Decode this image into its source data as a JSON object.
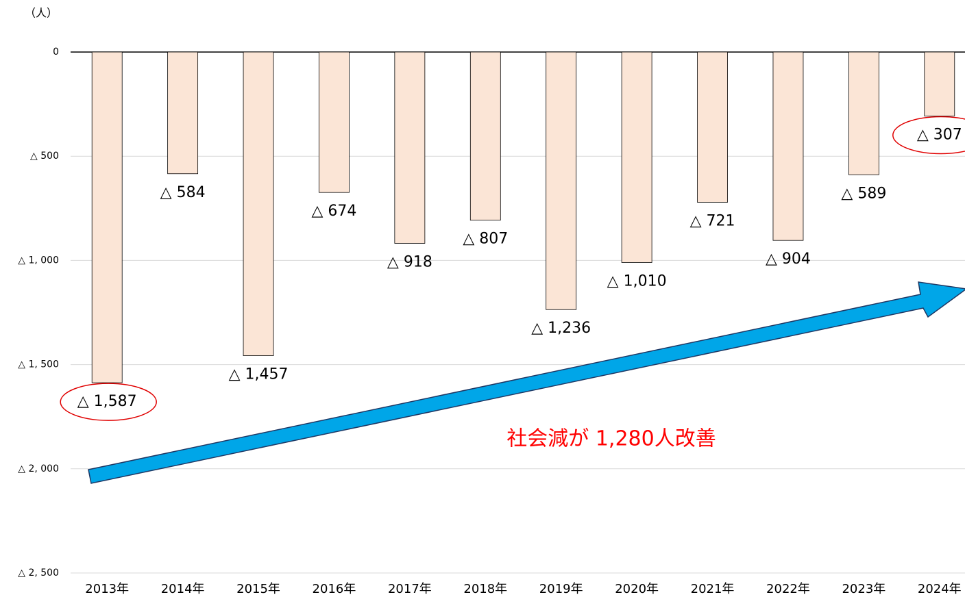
{
  "chart_data": {
    "type": "bar",
    "y_label": "（人）",
    "annotation": "社会減が 1,280人改善",
    "categories": [
      "2013年",
      "2014年",
      "2015年",
      "2016年",
      "2017年",
      "2018年",
      "2019年",
      "2020年",
      "2021年",
      "2022年",
      "2023年",
      "2024年"
    ],
    "values": [
      -1587,
      -584,
      -1457,
      -674,
      -918,
      -807,
      -1236,
      -1010,
      -721,
      -904,
      -589,
      -307
    ],
    "value_labels": [
      "△ 1,587",
      "△ 584",
      "△ 1,457",
      "△ 674",
      "△ 918",
      "△ 807",
      "△ 1,236",
      "△ 1,010",
      "△ 721",
      "△ 904",
      "△ 589",
      "△ 307"
    ],
    "color": "#fbe5d6",
    "ylim": [
      -2500,
      0
    ],
    "yticks": [
      0,
      {
        "value": -500,
        "label": "△ 500"
      },
      {
        "value": -1000,
        "label": "△ 1, 000"
      },
      {
        "value": -1500,
        "label": "△ 1, 500"
      },
      {
        "value": -2000,
        "label": "△ 2, 000"
      },
      {
        "value": -2500,
        "label": "△ 2, 500"
      }
    ],
    "grid": true
  }
}
